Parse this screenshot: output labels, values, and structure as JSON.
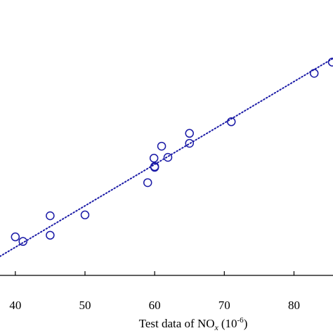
{
  "chart_data": {
    "type": "scatter",
    "x_label": {
      "text": "Test data of NO",
      "sub": "x",
      "unit": "(10",
      "sup": "-6",
      "close": ")"
    },
    "series": [
      {
        "color": "#1a1aa6",
        "x": [
          40,
          41.1,
          45,
          45,
          50,
          59,
          59.9,
          60,
          60,
          61,
          61.9,
          65,
          65,
          71,
          82.9,
          85.5
        ],
        "values": [
          42.5,
          41.4,
          47.6,
          42.9,
          47.8,
          55.6,
          61.5,
          59.5,
          59.3,
          64.4,
          61.7,
          67.5,
          65.1,
          70.3,
          82.0,
          84.7
        ]
      }
    ],
    "fit_line": {
      "color": "#1a1aa6",
      "x": [
        37.8,
        85.6
      ],
      "y": [
        37.8,
        85.6
      ]
    },
    "xlim": [
      37.8,
      85.6
    ],
    "xticks": [
      40,
      50,
      60,
      70,
      80
    ],
    "ylim": [
      33.2,
      99.7
    ]
  }
}
